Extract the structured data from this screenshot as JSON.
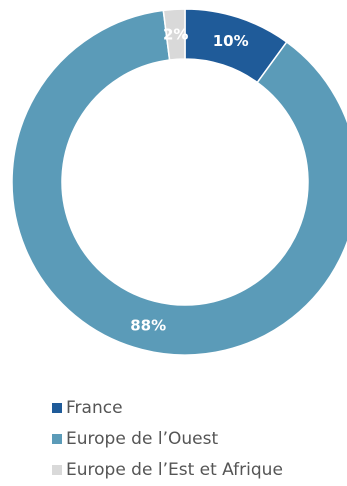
{
  "chart_data": {
    "type": "pie",
    "donut": true,
    "categories": [
      "France",
      "Europe de l’Ouest",
      "Europe de l’Est et Afrique"
    ],
    "values": [
      10,
      88,
      2
    ],
    "data_labels": [
      "10%",
      "88%",
      "2%"
    ],
    "colors": [
      "#1f5b99",
      "#5b9bb8",
      "#d9d9d9"
    ],
    "legend_position": "bottom-left"
  }
}
